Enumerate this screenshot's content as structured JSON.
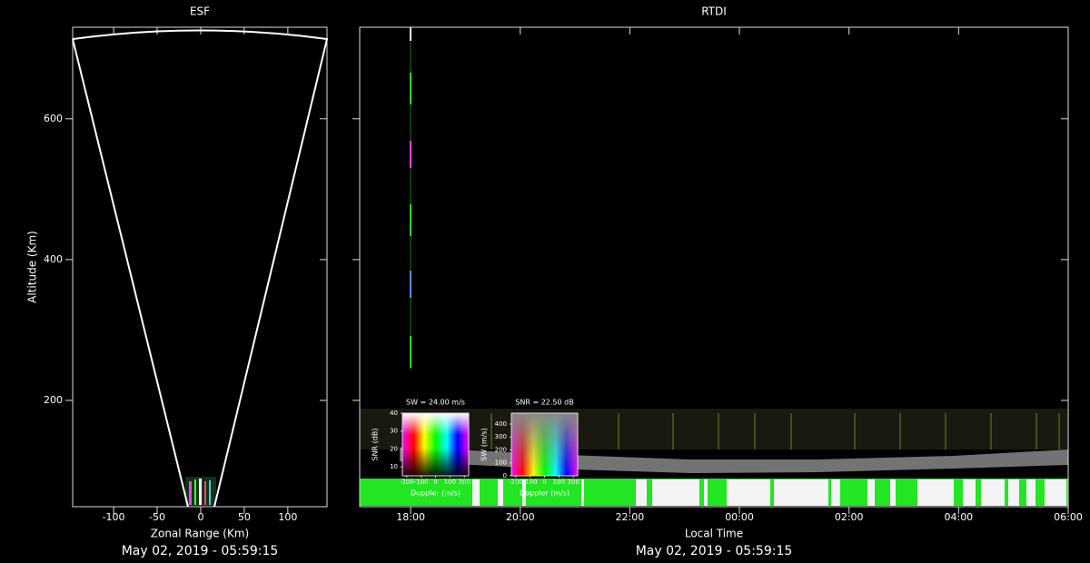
{
  "chart_data": [
    {
      "type": "fan",
      "title": "ESF",
      "x_label": "Zonal Range (Km)",
      "y_label": "Altitude (Km)",
      "xlim": [
        -147,
        145
      ],
      "ylim": [
        49,
        730
      ],
      "xticks": [
        -100,
        -50,
        0,
        50,
        100
      ],
      "yticks": [
        200,
        400,
        600
      ],
      "timestamp": "May 02, 2019 - 05:59:15"
    },
    {
      "type": "rtdi",
      "title": "RTDI",
      "x_label": "Local Time",
      "xlim": [
        17.07,
        30
      ],
      "ylim": [
        49,
        730
      ],
      "xticks": [
        {
          "value": 18,
          "label": "18:00"
        },
        {
          "value": 20,
          "label": "20:00"
        },
        {
          "value": 22,
          "label": "22:00"
        },
        {
          "value": 24,
          "label": "00:00"
        },
        {
          "value": 26,
          "label": "02:00"
        },
        {
          "value": 28,
          "label": "04:00"
        },
        {
          "value": 30,
          "label": "06:00"
        }
      ],
      "yticks": [
        200,
        400,
        600
      ],
      "timestamp": "May 02, 2019 - 05:59:15",
      "insets": [
        {
          "title": "SW = 24.00 m/s",
          "y_label": "SNR (dB)",
          "x_label": "Doppler (m/s)",
          "ylim": [
            5,
            40
          ],
          "yticks": [
            10,
            20,
            30,
            40
          ],
          "xlim": [
            -230,
            230
          ],
          "xticks": [
            -200,
            -100,
            0,
            100,
            200
          ]
        },
        {
          "title": "SNR = 22.50 dB",
          "y_label": "SW (m/s)",
          "x_label": "Doppler (m/s)",
          "ylim": [
            0,
            484
          ],
          "yticks": [
            0,
            100,
            200,
            300,
            400
          ],
          "xlim": [
            -230,
            230
          ],
          "xticks": [
            -200,
            -100,
            0,
            100,
            200
          ]
        }
      ]
    }
  ]
}
